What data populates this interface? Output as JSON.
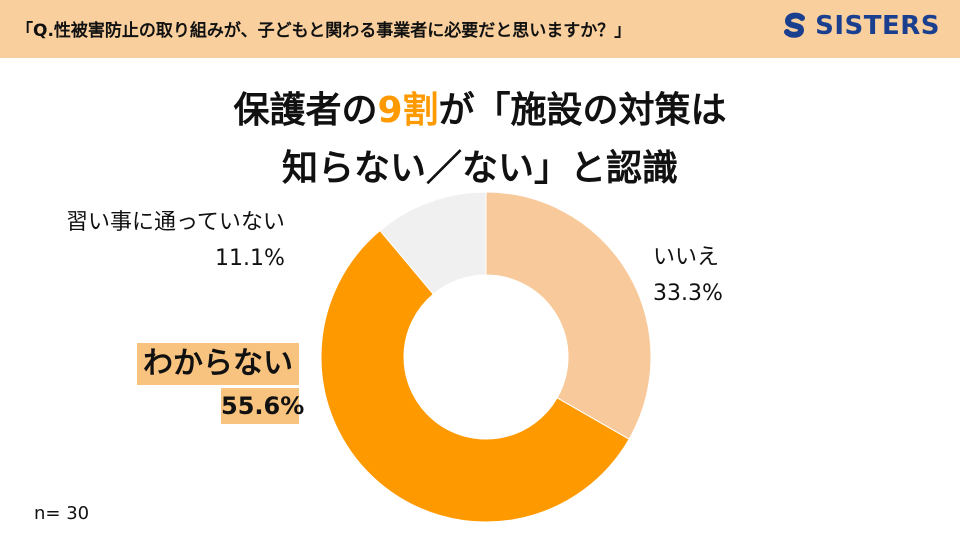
{
  "header": {
    "question": "「Q.性被害防止の取り組みが、子どもと関わる事業者に必要だと思いますか？」",
    "brand": "SISTERS",
    "brand_color": "#1a3f8f",
    "bar_color": "#f8cf9d",
    "brand_icon": "sisters-logo-icon"
  },
  "title": {
    "line1_pre": "保護者の",
    "line1_accent": "9割",
    "line1_post": "が「施設の対策は",
    "line2": "知らない／ない」と認識",
    "accent_color": "#ff9900"
  },
  "chart_data": {
    "type": "pie",
    "subtype": "donut",
    "start_angle_deg": 0,
    "direction": "clockwise",
    "slices": [
      {
        "label": "いいえ",
        "value": 33.3,
        "display": "33.3%",
        "color": "#f8c99a"
      },
      {
        "label": "わからない",
        "value": 55.6,
        "display": "55.6%",
        "color": "#ff9900"
      },
      {
        "label": "習い事に通っていない",
        "value": 11.1,
        "display": "11.1%",
        "color": "#f0f0f0"
      }
    ],
    "sample_size": "n= 30"
  }
}
